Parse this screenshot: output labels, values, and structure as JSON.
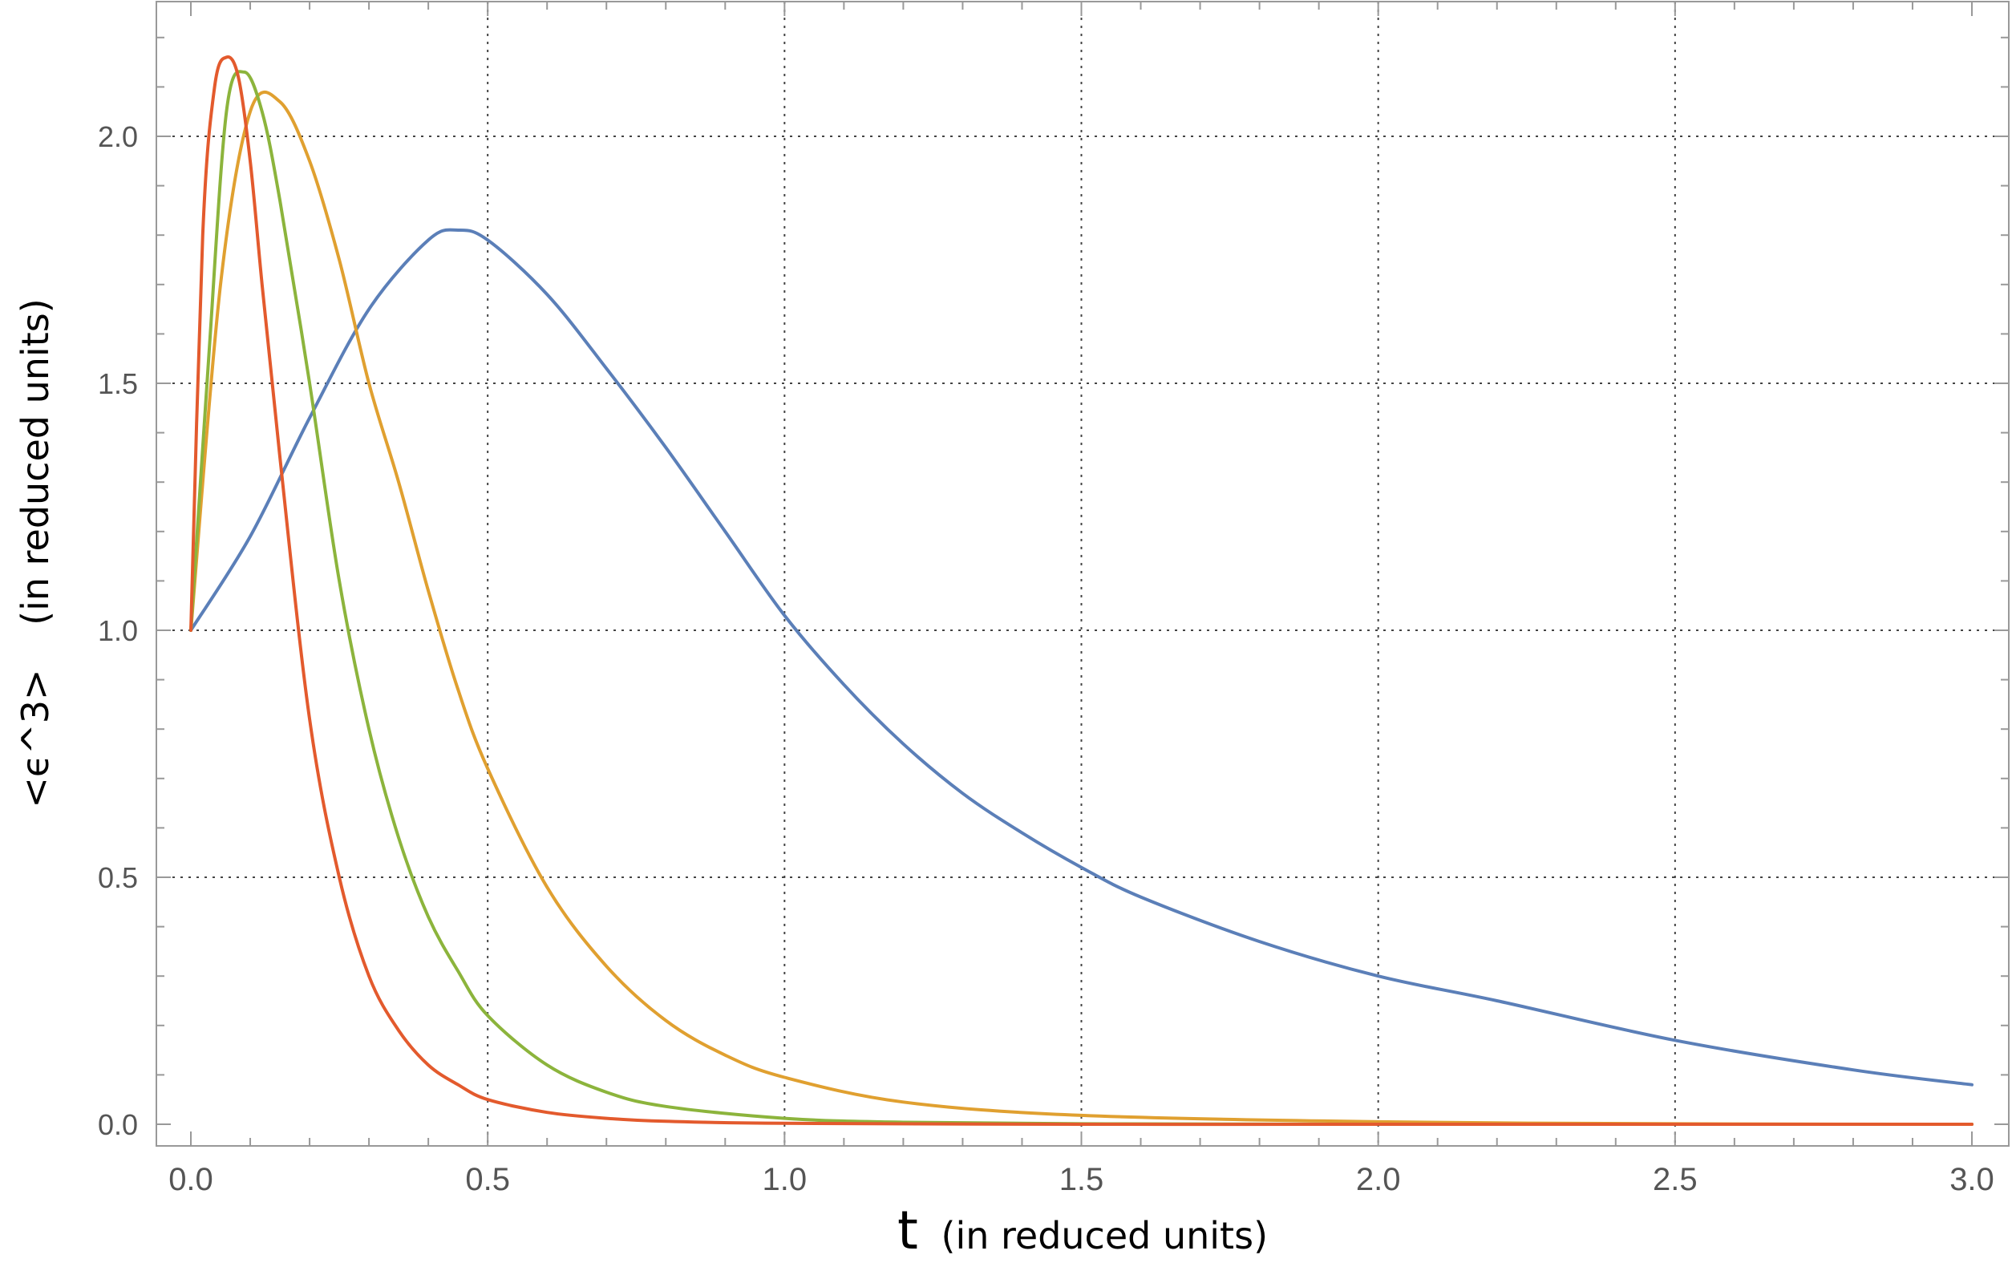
{
  "chart_data": {
    "type": "line",
    "xlabel": {
      "var": "t",
      "units": "(in reduced units)"
    },
    "ylabel": {
      "var": "<ϵ^3>",
      "units": "(in reduced units)"
    },
    "xlim": [
      0.0,
      3.0
    ],
    "ylim": [
      0.0,
      2.2
    ],
    "xticks": [
      "0.0",
      "0.5",
      "1.0",
      "1.5",
      "2.0",
      "2.5",
      "3.0"
    ],
    "yticks": [
      "0.0",
      "0.5",
      "1.0",
      "1.5",
      "2.0"
    ],
    "grid": true,
    "grid_style": "dotted",
    "series": [
      {
        "color": "#5b7fb8",
        "x": [
          0.0,
          0.1,
          0.2,
          0.3,
          0.4,
          0.45,
          0.5,
          0.6,
          0.7,
          0.8,
          0.9,
          1.0,
          1.1,
          1.2,
          1.3,
          1.4,
          1.5,
          1.6,
          1.8,
          2.0,
          2.2,
          2.5,
          2.8,
          3.0
        ],
        "y": [
          1.0,
          1.19,
          1.43,
          1.65,
          1.79,
          1.81,
          1.79,
          1.68,
          1.53,
          1.37,
          1.2,
          1.03,
          0.89,
          0.77,
          0.67,
          0.59,
          0.52,
          0.46,
          0.37,
          0.3,
          0.25,
          0.17,
          0.11,
          0.08
        ]
      },
      {
        "color": "#e0a030",
        "x": [
          0.0,
          0.05,
          0.1,
          0.15,
          0.2,
          0.25,
          0.3,
          0.35,
          0.4,
          0.45,
          0.5,
          0.6,
          0.7,
          0.8,
          0.9,
          1.0,
          1.2,
          1.5,
          2.0,
          2.5,
          3.0
        ],
        "y": [
          1.0,
          1.7,
          2.05,
          2.07,
          1.95,
          1.75,
          1.5,
          1.3,
          1.08,
          0.88,
          0.72,
          0.48,
          0.32,
          0.21,
          0.14,
          0.095,
          0.045,
          0.018,
          0.005,
          0.001,
          0.0
        ]
      },
      {
        "color": "#8cb43c",
        "x": [
          0.0,
          0.03,
          0.06,
          0.09,
          0.12,
          0.15,
          0.2,
          0.25,
          0.3,
          0.35,
          0.4,
          0.45,
          0.5,
          0.6,
          0.7,
          0.8,
          1.0,
          1.2,
          1.5,
          2.0,
          3.0
        ],
        "y": [
          1.0,
          1.55,
          2.05,
          2.13,
          2.05,
          1.87,
          1.5,
          1.1,
          0.8,
          0.58,
          0.42,
          0.31,
          0.22,
          0.12,
          0.065,
          0.036,
          0.012,
          0.004,
          0.001,
          0.0,
          0.0
        ]
      },
      {
        "color": "#e35a2d",
        "x": [
          0.0,
          0.02,
          0.04,
          0.06,
          0.08,
          0.1,
          0.12,
          0.15,
          0.2,
          0.25,
          0.3,
          0.35,
          0.4,
          0.45,
          0.5,
          0.6,
          0.7,
          0.8,
          1.0,
          1.5,
          2.0,
          3.0
        ],
        "y": [
          1.0,
          1.8,
          2.1,
          2.16,
          2.12,
          1.95,
          1.7,
          1.35,
          0.82,
          0.5,
          0.3,
          0.19,
          0.12,
          0.08,
          0.05,
          0.024,
          0.012,
          0.006,
          0.002,
          0.0,
          0.0,
          0.0
        ]
      }
    ]
  }
}
